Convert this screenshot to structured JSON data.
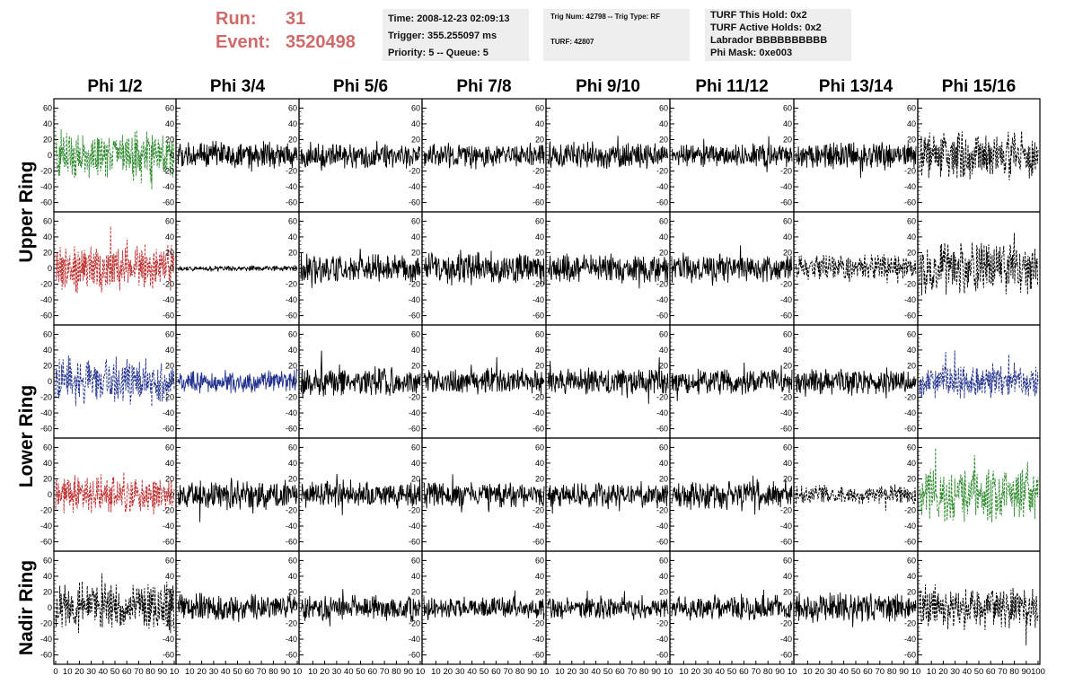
{
  "header": {
    "run_label": "Run:",
    "run_value": "31",
    "event_label": "Event:",
    "event_value": "3520498"
  },
  "time_box": {
    "line1": "Time: 2008-12-23 02:09:13",
    "line2": "Trigger: 355.255097 ms",
    "line3": "Priority: 5 -- Queue: 5"
  },
  "trig_box": {
    "line1": "Trig Num: 42798 -- Trig Type: RF",
    "line2": "TURF: 42807"
  },
  "turf_box": {
    "line1": "TURF This Hold: 0x2",
    "line2": "TURF Active Holds: 0x2",
    "line3": "Labrador BBBBBBBBBB",
    "line4": "Phi Mask: 0xe003"
  },
  "columns": [
    "Phi 1/2",
    "Phi 3/4",
    "Phi 5/6",
    "Phi 7/8",
    "Phi 9/10",
    "Phi 11/12",
    "Phi 13/14",
    "Phi 15/16"
  ],
  "ring_labels": [
    "Upper Ring",
    "Lower Ring",
    "Nadir Ring"
  ],
  "chart_data": {
    "type": "line",
    "description_of_grid": "5 rows x 8 columns of waveform panels",
    "xlim": [
      0,
      100
    ],
    "ylim": [
      -65,
      65
    ],
    "x_ticks": [
      0,
      10,
      20,
      30,
      40,
      50,
      60,
      70,
      80,
      90,
      100
    ],
    "x_tick_labels_first": [
      "0",
      "10",
      "20",
      "30",
      "40",
      "50",
      "60",
      "70",
      "80",
      "90",
      "10"
    ],
    "x_tick_labels_mid": [
      "10",
      "20",
      "30",
      "40",
      "50",
      "60",
      "70",
      "80",
      "90",
      "10"
    ],
    "x_tick_labels_last": [
      "10",
      "20",
      "30",
      "40",
      "50",
      "60",
      "70",
      "80",
      "90",
      "100"
    ],
    "y_ticks": [
      60,
      40,
      20,
      0,
      -20,
      -40,
      -60
    ],
    "colors": {
      "green": "#2e8b2e",
      "red": "#c03030",
      "blue": "#25358f",
      "black": "#000000"
    },
    "panels": [
      [
        {
          "color": "green",
          "style": "dashed",
          "amp": 26
        },
        {
          "color": "black",
          "style": "solid",
          "amp": 14
        },
        {
          "color": "black",
          "style": "solid",
          "amp": 13
        },
        {
          "color": "black",
          "style": "solid",
          "amp": 12
        },
        {
          "color": "black",
          "style": "solid",
          "amp": 14
        },
        {
          "color": "black",
          "style": "solid",
          "amp": 12
        },
        {
          "color": "black",
          "style": "solid",
          "amp": 14
        },
        {
          "color": "black",
          "style": "dashed",
          "amp": 24
        }
      ],
      [
        {
          "color": "red",
          "style": "dashed",
          "amp": 26
        },
        {
          "color": "black",
          "style": "solid",
          "amp": 3
        },
        {
          "color": "black",
          "style": "solid",
          "amp": 15
        },
        {
          "color": "black",
          "style": "solid",
          "amp": 17
        },
        {
          "color": "black",
          "style": "solid",
          "amp": 14
        },
        {
          "color": "black",
          "style": "solid",
          "amp": 15
        },
        {
          "color": "black",
          "style": "dashed",
          "amp": 14
        },
        {
          "color": "black",
          "style": "dashed",
          "amp": 28
        }
      ],
      [
        {
          "color": "blue",
          "style": "dashed",
          "amp": 24
        },
        {
          "color": "blue",
          "style": "solid",
          "amp": 12
        },
        {
          "color": "black",
          "style": "solid",
          "amp": 16
        },
        {
          "color": "black",
          "style": "solid",
          "amp": 14
        },
        {
          "color": "black",
          "style": "solid",
          "amp": 14
        },
        {
          "color": "black",
          "style": "solid",
          "amp": 13
        },
        {
          "color": "black",
          "style": "solid",
          "amp": 14
        },
        {
          "color": "blue",
          "style": "dashed",
          "amp": 18
        }
      ],
      [
        {
          "color": "red",
          "style": "dashed",
          "amp": 20
        },
        {
          "color": "black",
          "style": "solid",
          "amp": 16
        },
        {
          "color": "black",
          "style": "solid",
          "amp": 15
        },
        {
          "color": "black",
          "style": "solid",
          "amp": 14
        },
        {
          "color": "black",
          "style": "solid",
          "amp": 13
        },
        {
          "color": "black",
          "style": "solid",
          "amp": 15
        },
        {
          "color": "black",
          "style": "dashed",
          "amp": 10
        },
        {
          "color": "green",
          "style": "dashed",
          "amp": 28
        }
      ],
      [
        {
          "color": "black",
          "style": "dashed",
          "amp": 26
        },
        {
          "color": "black",
          "style": "solid",
          "amp": 14
        },
        {
          "color": "black",
          "style": "solid",
          "amp": 13
        },
        {
          "color": "black",
          "style": "solid",
          "amp": 12
        },
        {
          "color": "black",
          "style": "solid",
          "amp": 12
        },
        {
          "color": "black",
          "style": "solid",
          "amp": 13
        },
        {
          "color": "black",
          "style": "solid",
          "amp": 15
        },
        {
          "color": "black",
          "style": "dashed",
          "amp": 22
        }
      ]
    ]
  }
}
